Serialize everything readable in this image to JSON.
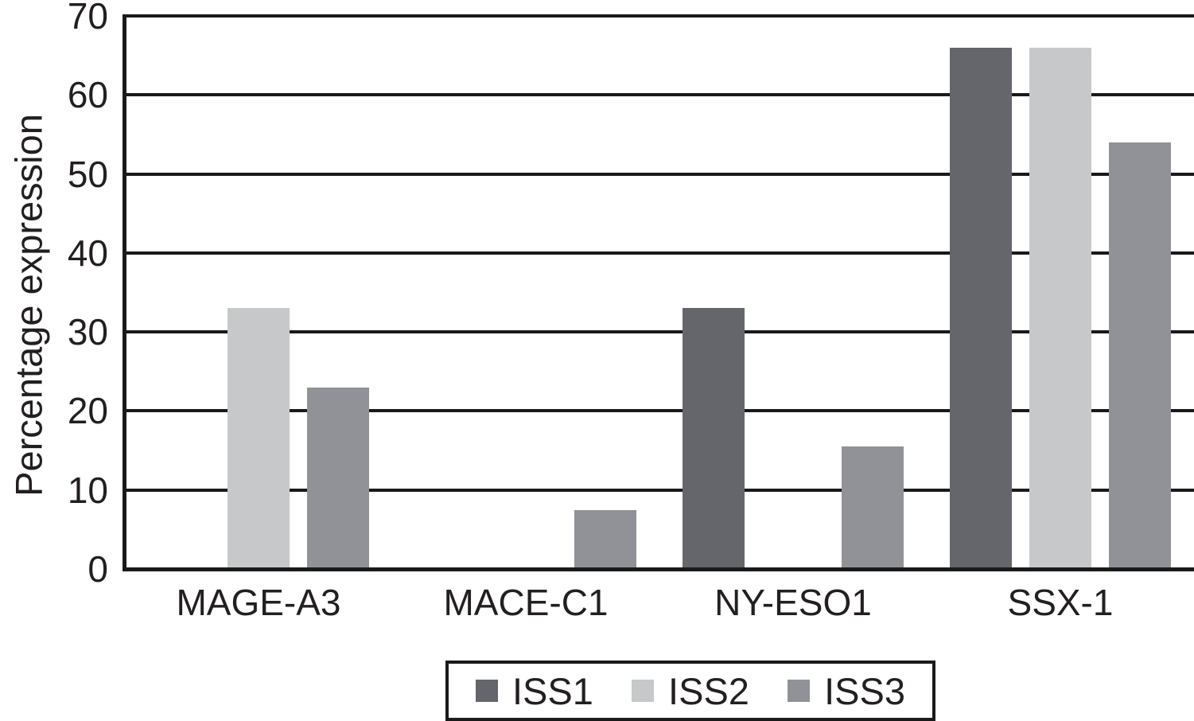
{
  "chart_data": {
    "type": "bar",
    "title": "",
    "ylabel": "Percentage expression",
    "xlabel": "",
    "categories": [
      "MAGE-A3",
      "MACE-C1",
      "NY-ESO1",
      "SSX-1"
    ],
    "series": [
      {
        "name": "ISS1",
        "color": "#64666b",
        "values": [
          0,
          0,
          33,
          66
        ]
      },
      {
        "name": "ISS2",
        "color": "#c7c8ca",
        "values": [
          33,
          0,
          0,
          66
        ]
      },
      {
        "name": "ISS3",
        "color": "#919297",
        "values": [
          23,
          7.5,
          15.5,
          54
        ]
      }
    ],
    "ylim": [
      0,
      70
    ],
    "yticks": [
      0,
      10,
      20,
      30,
      40,
      50,
      60,
      70
    ],
    "grid": "horizontal",
    "legend_position": "bottom",
    "legend_entries": [
      "ISS1",
      "ISS2",
      "ISS3"
    ]
  },
  "colors": {
    "background": "#ffffff",
    "axis": "#1a1a1a",
    "text": "#231f20",
    "iss1": "#64666b",
    "iss2": "#c7c8ca",
    "iss3": "#919297"
  }
}
